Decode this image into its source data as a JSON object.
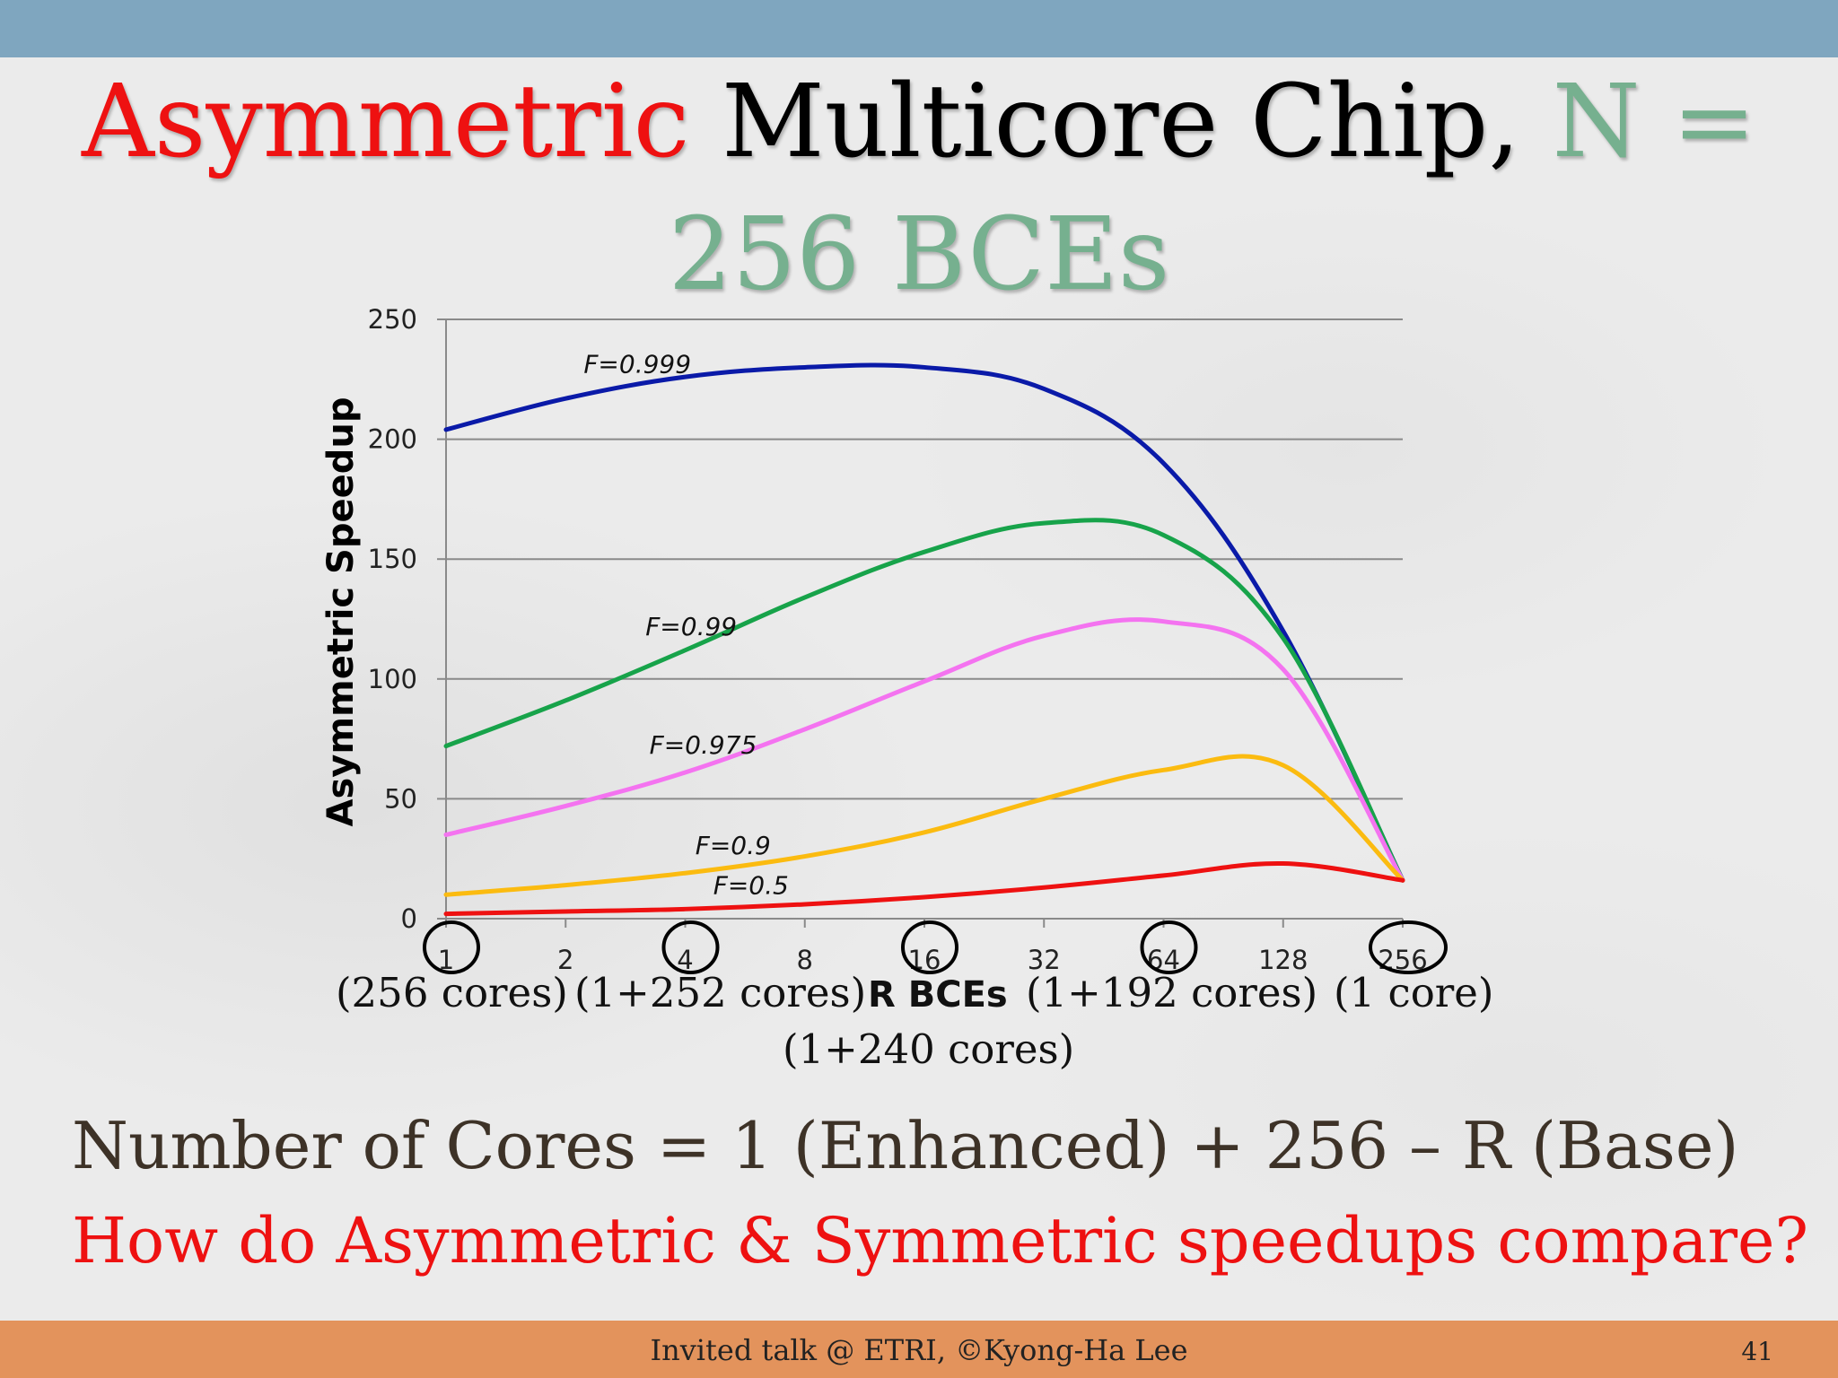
{
  "slide": {
    "title_red": "Asymmetric",
    "title_black": " Multicore Chip, ",
    "title_green_1": "N =",
    "title_green_2": "256 BCEs",
    "core_labels": [
      "(256 cores)",
      "(1+252 cores)",
      "(1+240 cores)",
      "(1+192 cores)",
      "(1 core)"
    ],
    "equation": "Number of Cores = 1 (Enhanced) + 256 – R (Base)",
    "question": "How do Asymmetric & Symmetric speedups compare?",
    "footer": "Invited talk @ ETRI, ©Kyong-Ha Lee",
    "slide_number": "41",
    "colors": {
      "top_bar": "#7fa6bf",
      "footer": "#e3935c",
      "accent_red": "#ee1111",
      "accent_green": "#76b08f"
    }
  },
  "chart_data": {
    "type": "line",
    "ylabel": "Asymmetric Speedup",
    "xlabel": "R BCEs",
    "categories": [
      "1",
      "2",
      "4",
      "8",
      "16",
      "32",
      "64",
      "128",
      "256"
    ],
    "y_ticks": [
      "0",
      "50",
      "100",
      "150",
      "200",
      "250"
    ],
    "ylim": [
      0,
      250
    ],
    "grid": true,
    "circled_categories": [
      "1",
      "4",
      "16",
      "64",
      "256"
    ],
    "series": [
      {
        "name": "F=0.999",
        "color": "#0a1aa8",
        "values": [
          204,
          217,
          226,
          230,
          230,
          221,
          190,
          120,
          16
        ]
      },
      {
        "name": "F=0.99",
        "color": "#17a34a",
        "values": [
          72,
          91,
          112,
          134,
          153,
          165,
          160,
          117,
          16
        ]
      },
      {
        "name": "F=0.975",
        "color": "#f473f0",
        "values": [
          35,
          47,
          61,
          79,
          99,
          118,
          124,
          104,
          16
        ]
      },
      {
        "name": "F=0.9",
        "color": "#fbbb10",
        "values": [
          10,
          14,
          19,
          26,
          36,
          50,
          62,
          64,
          16
        ]
      },
      {
        "name": "F=0.5",
        "color": "#ee1111",
        "values": [
          2,
          3,
          4,
          6,
          9,
          13,
          18,
          23,
          16
        ]
      }
    ]
  }
}
